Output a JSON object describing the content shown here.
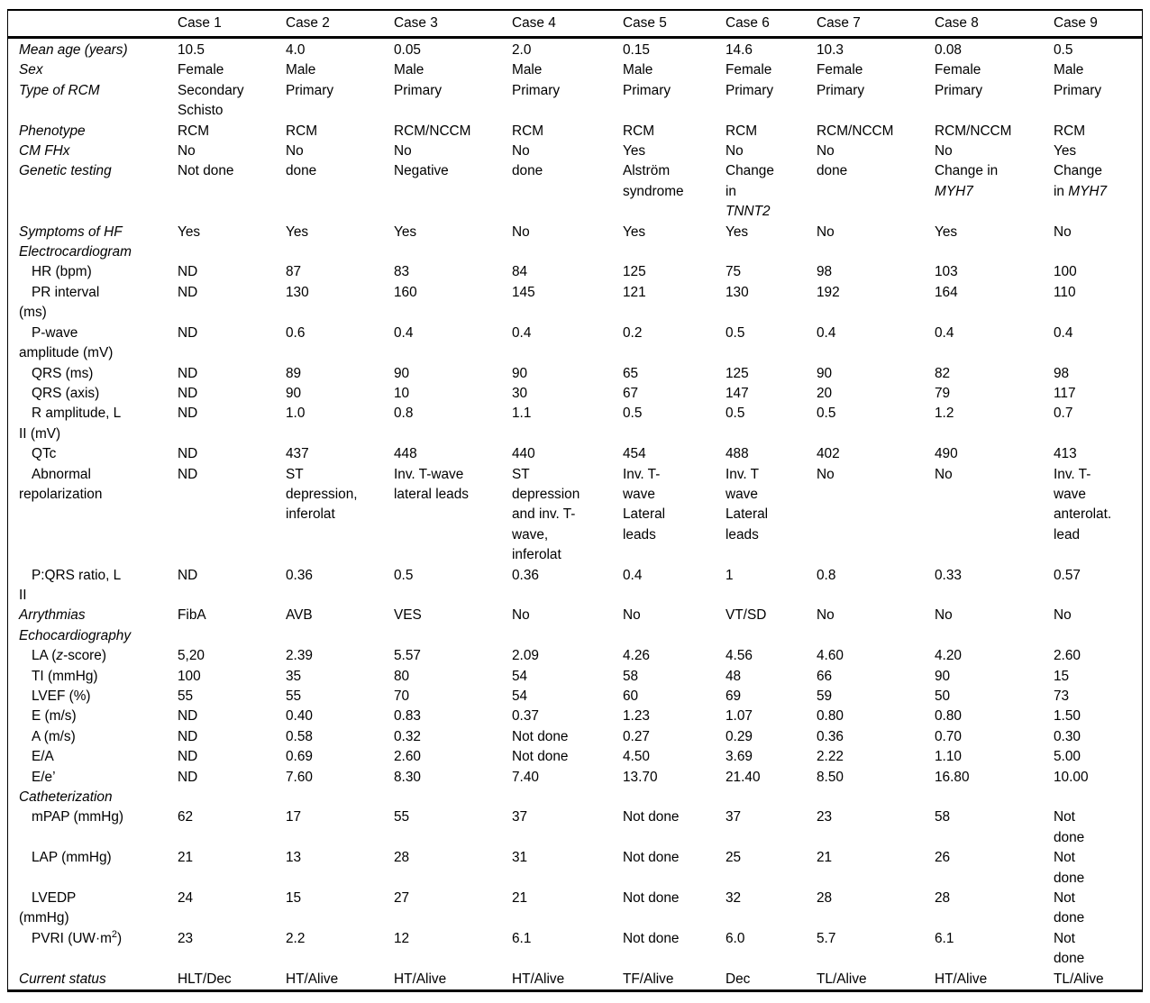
{
  "page": {
    "background": "#ffffff",
    "text_color": "#000000",
    "rule_color": "#000000"
  },
  "table": {
    "corner_label": "",
    "columns": [
      "Case 1",
      "Case 2",
      "Case 3",
      "Case 4",
      "Case 5",
      "Case 6",
      "Case 7",
      "Case 8",
      "Case 9"
    ],
    "rows": [
      {
        "label": "Mean age (years)",
        "style": "head",
        "values": [
          "10.5",
          "4.0",
          "0.05",
          "2.0",
          "0.15",
          "14.6",
          "10.3",
          "0.08",
          "0.5"
        ]
      },
      {
        "label": "Sex",
        "style": "head",
        "values": [
          "Female",
          "Male",
          "Male",
          "Male",
          "Male",
          "Female",
          "Female",
          "Female",
          "Male"
        ]
      },
      {
        "label": "Type of RCM",
        "style": "head",
        "values": [
          "Secondary\nSchisto",
          "Primary",
          "Primary",
          "Primary",
          "Primary",
          "Primary",
          "Primary",
          "Primary",
          "Primary"
        ]
      },
      {
        "label": "Phenotype",
        "style": "head",
        "values": [
          "RCM",
          "RCM",
          "RCM/NCCM",
          "RCM",
          "RCM",
          "RCM",
          "RCM/NCCM",
          "RCM/NCCM",
          "RCM"
        ]
      },
      {
        "label": "CM FHx",
        "style": "head",
        "values": [
          "No",
          "No",
          "No",
          "No",
          "Yes",
          "No",
          "No",
          "No",
          "Yes"
        ]
      },
      {
        "label": "Genetic testing",
        "style": "head",
        "values": [
          "Not done",
          "done",
          "Negative",
          "done",
          "Alström\nsyndrome",
          "Change\nin\n*TNNT2*",
          "done",
          "Change in\n*MYH7*",
          "Change\nin *MYH7*"
        ]
      },
      {
        "label": "Symptoms of HF",
        "style": "head",
        "values": [
          "Yes",
          "Yes",
          "Yes",
          "No",
          "Yes",
          "Yes",
          "No",
          "Yes",
          "No"
        ]
      },
      {
        "label": "Electrocardiogram",
        "style": "section",
        "values": []
      },
      {
        "label": "HR (bpm)",
        "style": "sub",
        "values": [
          "ND",
          "87",
          "83",
          "84",
          "125",
          "75",
          "98",
          "103",
          "100"
        ]
      },
      {
        "label": "PR interval\n(ms)",
        "style": "sub",
        "values": [
          "ND",
          "130",
          "160",
          "145",
          "121",
          "130",
          "192",
          "164",
          "110"
        ]
      },
      {
        "label": "P-wave\namplitude (mV)",
        "style": "sub",
        "values": [
          "ND",
          "0.6",
          "0.4",
          "0.4",
          "0.2",
          "0.5",
          "0.4",
          "0.4",
          "0.4"
        ]
      },
      {
        "label": "QRS (ms)",
        "style": "sub",
        "values": [
          "ND",
          "89",
          "90",
          "90",
          "65",
          "125",
          "90",
          "82",
          "98"
        ]
      },
      {
        "label": "QRS (axis)",
        "style": "sub",
        "values": [
          "ND",
          "90",
          "10",
          "30",
          "67",
          "147",
          "20",
          "79",
          "117"
        ]
      },
      {
        "label": "R amplitude, L\nII (mV)",
        "style": "sub",
        "values": [
          "ND",
          "1.0",
          "0.8",
          "1.1",
          "0.5",
          "0.5",
          "0.5",
          "1.2",
          "0.7"
        ]
      },
      {
        "label": "QTc",
        "style": "sub",
        "values": [
          "ND",
          "437",
          "448",
          "440",
          "454",
          "488",
          "402",
          "490",
          "413"
        ]
      },
      {
        "label": "Abnormal\nrepolarization",
        "style": "sub",
        "values": [
          "ND",
          "ST\ndepression,\ninferolat",
          "Inv. T-wave\nlateral leads",
          "ST\ndepression\nand inv. T-\nwave,\ninferolat",
          "Inv. T-\nwave\nLateral\nleads",
          "Inv. T\nwave\nLateral\nleads",
          "No",
          "No",
          "Inv. T-\nwave\nanterolat.\nlead"
        ]
      },
      {
        "label": "P:QRS ratio, L\nII",
        "style": "sub",
        "values": [
          "ND",
          "0.36",
          "0.5",
          "0.36",
          "0.4",
          "1",
          "0.8",
          "0.33",
          "0.57"
        ]
      },
      {
        "label": "Arrythmias",
        "style": "head",
        "values": [
          "FibA",
          "AVB",
          "VES",
          "No",
          "No",
          "VT/SD",
          "No",
          "No",
          "No"
        ]
      },
      {
        "label": "Echocardiography",
        "style": "section",
        "values": []
      },
      {
        "label": "LA (*z*-score)",
        "style": "sub",
        "values": [
          "5,20",
          "2.39",
          "5.57",
          "2.09",
          "4.26",
          "4.56",
          "4.60",
          "4.20",
          "2.60"
        ]
      },
      {
        "label": "TI (mmHg)",
        "style": "sub",
        "values": [
          "100",
          "35",
          "80",
          "54",
          "58",
          "48",
          "66",
          "90",
          "15"
        ]
      },
      {
        "label": "LVEF (%)",
        "style": "sub",
        "values": [
          "55",
          "55",
          "70",
          "54",
          "60",
          "69",
          "59",
          "50",
          "73"
        ]
      },
      {
        "label": "E (m/s)",
        "style": "sub",
        "values": [
          "ND",
          "0.40",
          "0.83",
          "0.37",
          "1.23",
          "1.07",
          "0.80",
          "0.80",
          "1.50"
        ]
      },
      {
        "label": "A (m/s)",
        "style": "sub",
        "values": [
          "ND",
          "0.58",
          "0.32",
          "Not done",
          "0.27",
          "0.29",
          "0.36",
          "0.70",
          "0.30"
        ]
      },
      {
        "label": "E/A",
        "style": "sub",
        "values": [
          "ND",
          "0.69",
          "2.60",
          "Not done",
          "4.50",
          "3.69",
          "2.22",
          "1.10",
          "5.00"
        ]
      },
      {
        "label": "E/e’",
        "style": "sub",
        "values": [
          "ND",
          "7.60",
          "8.30",
          "7.40",
          "13.70",
          "21.40",
          "8.50",
          "16.80",
          "10.00"
        ]
      },
      {
        "label": "Catheterization",
        "style": "section",
        "values": []
      },
      {
        "label": "mPAP (mmHg)",
        "style": "sub",
        "values": [
          "62",
          "17",
          "55",
          "37",
          "Not done",
          "37",
          "23",
          "58",
          "Not\ndone"
        ]
      },
      {
        "label": "LAP (mmHg)",
        "style": "sub",
        "values": [
          "21",
          "13",
          "28",
          "31",
          "Not done",
          "25",
          "21",
          "26",
          "Not\ndone"
        ]
      },
      {
        "label": "LVEDP\n(mmHg)",
        "style": "sub",
        "values": [
          "24",
          "15",
          "27",
          "21",
          "Not done",
          "32",
          "28",
          "28",
          "Not\ndone"
        ]
      },
      {
        "label": "PVRI (UW·m^2^)",
        "style": "sub",
        "values": [
          "23",
          "2.2",
          "12",
          "6.1",
          "Not done",
          "6.0",
          "5.7",
          "6.1",
          "Not\ndone"
        ]
      },
      {
        "label": "Current status",
        "style": "head",
        "values": [
          "HLT/Dec",
          "HT/Alive",
          "HT/Alive",
          "HT/Alive",
          "TF/Alive",
          "Dec",
          "TL/Alive",
          "HT/Alive",
          "TL/Alive"
        ]
      }
    ]
  }
}
